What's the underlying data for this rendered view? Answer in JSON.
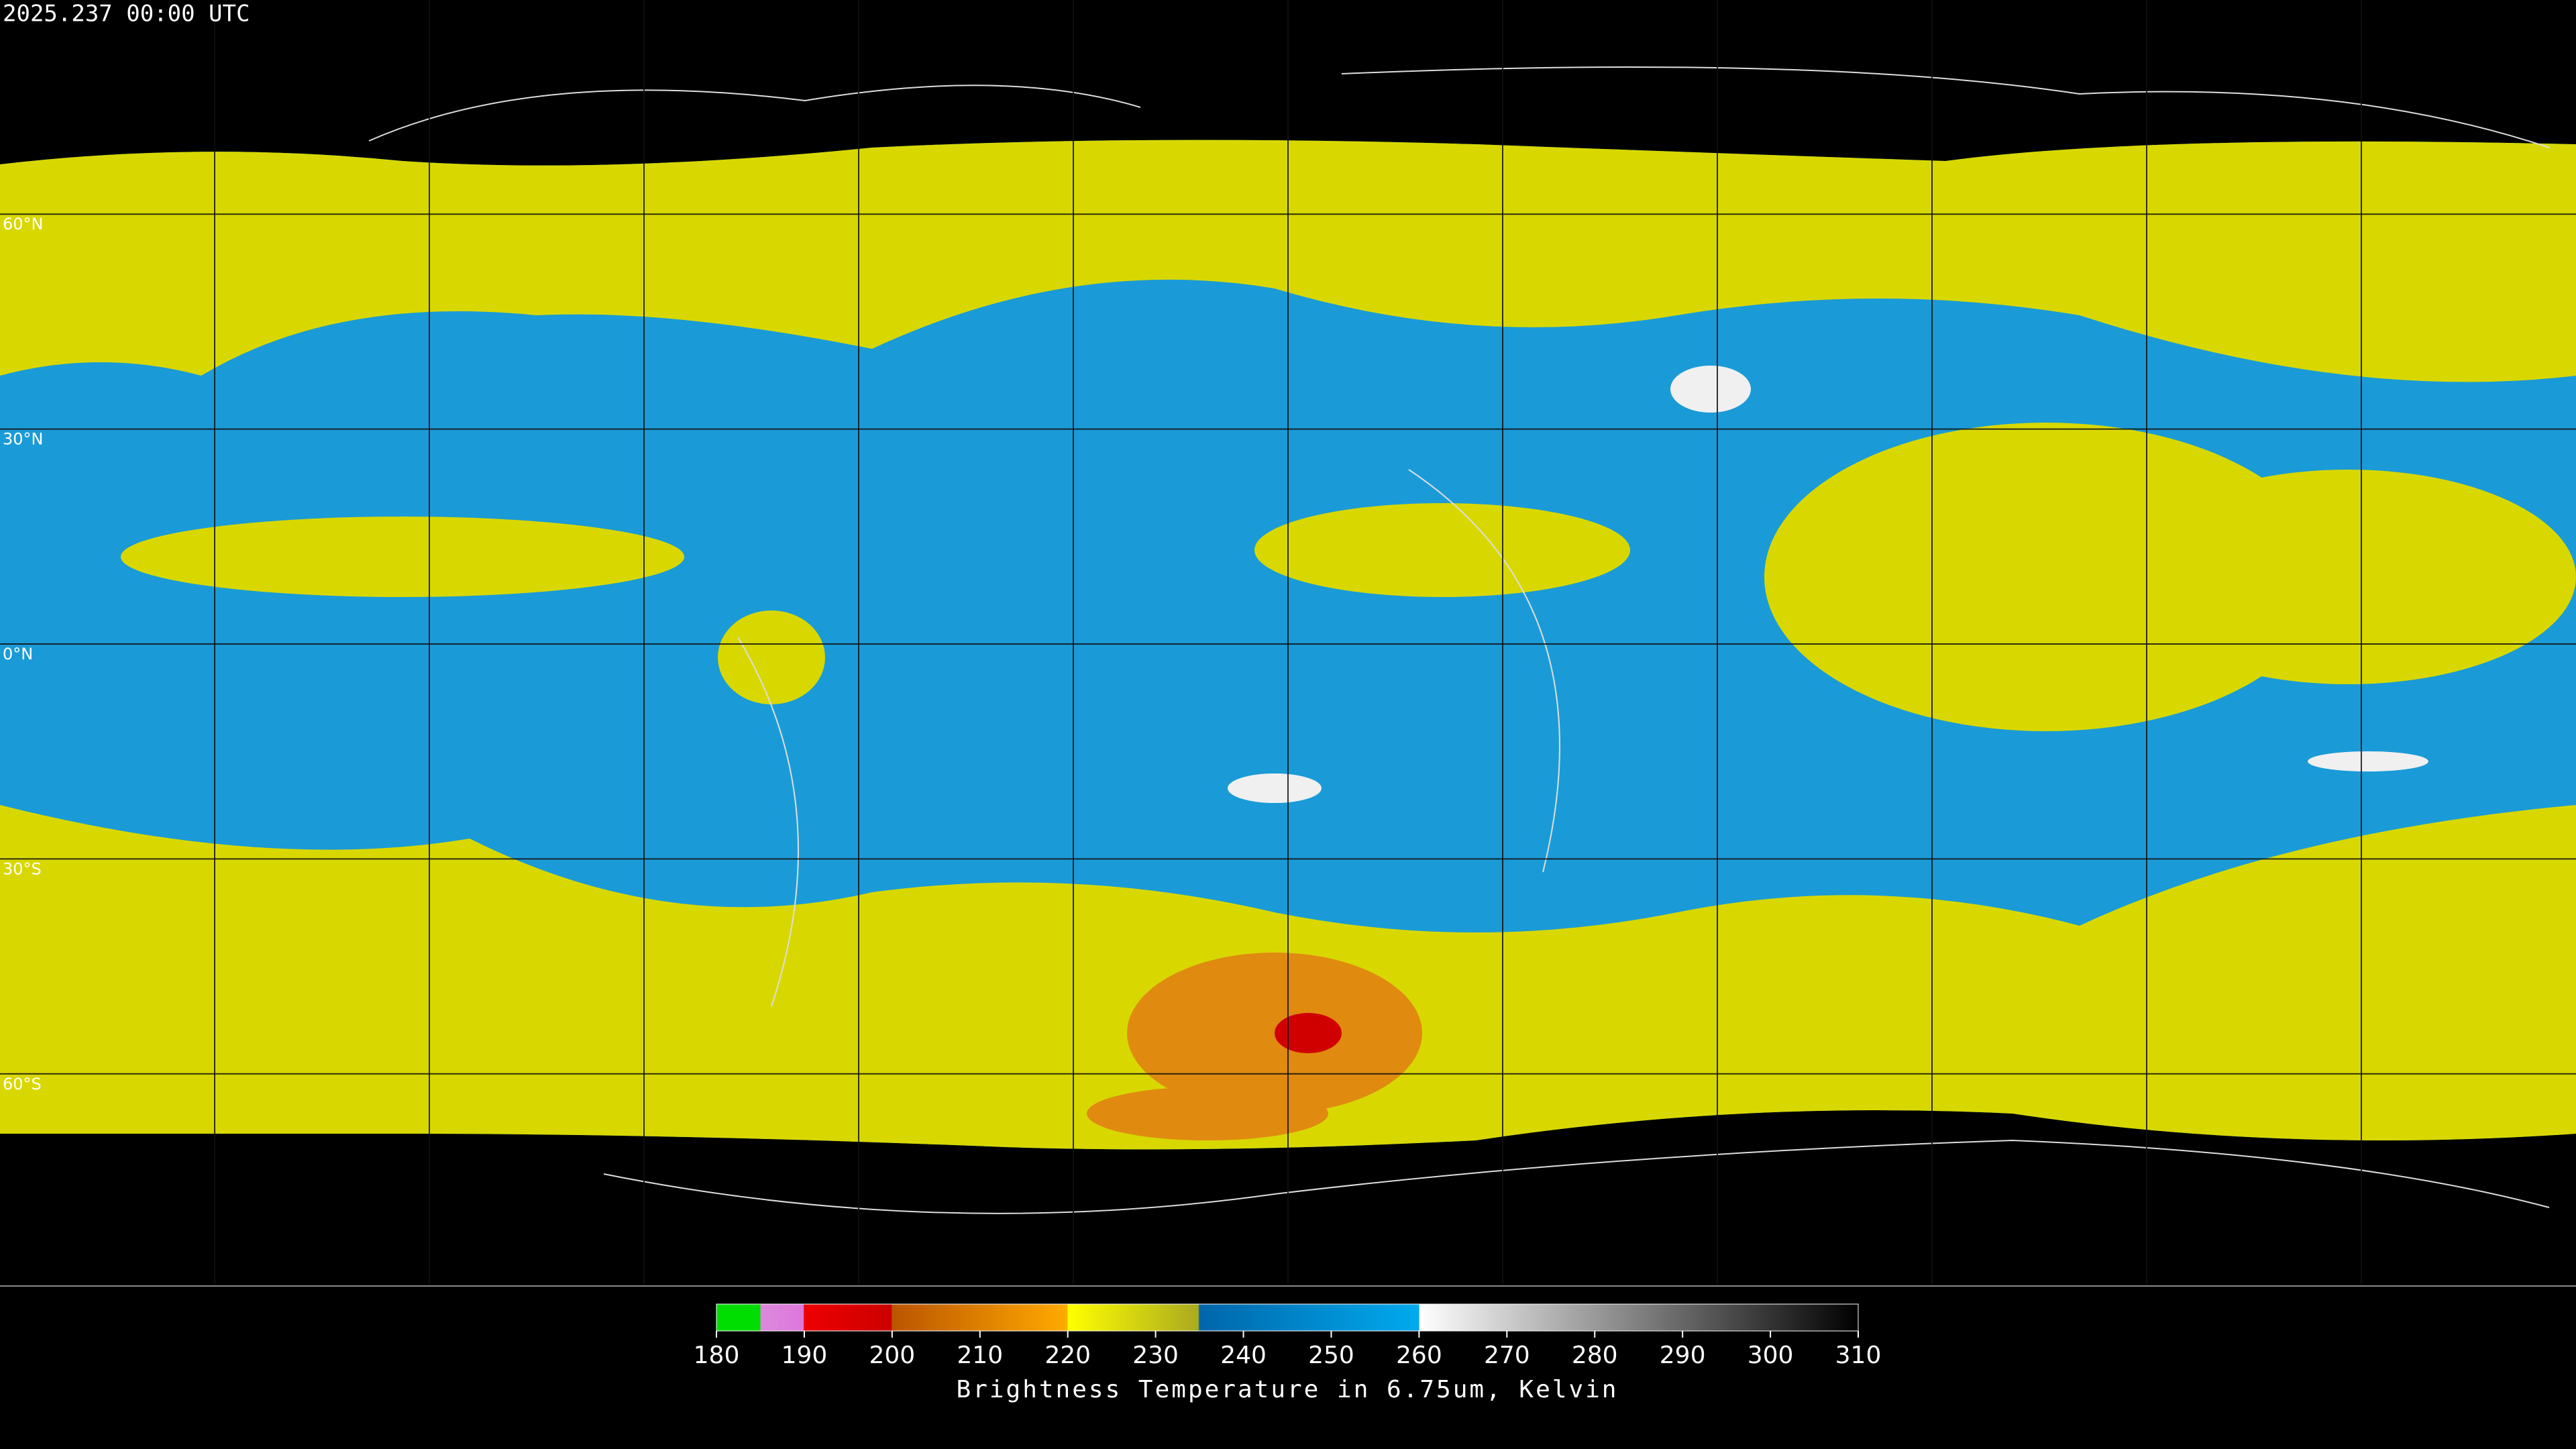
{
  "header": {
    "timestamp": "2025.237 00:00 UTC"
  },
  "map": {
    "latitudes": [
      {
        "value": 60,
        "label": "60°N"
      },
      {
        "value": 30,
        "label": "30°N"
      },
      {
        "value": 0,
        "label": "0°N"
      },
      {
        "value": -30,
        "label": "30°S"
      },
      {
        "value": -60,
        "label": "60°S"
      }
    ]
  },
  "colorbar": {
    "range": [
      180,
      310
    ],
    "ticks": [
      180,
      190,
      200,
      210,
      220,
      230,
      240,
      250,
      260,
      270,
      280,
      290,
      300,
      310
    ],
    "caption": "Brightness Temperature in 6.75um, Kelvin"
  }
}
